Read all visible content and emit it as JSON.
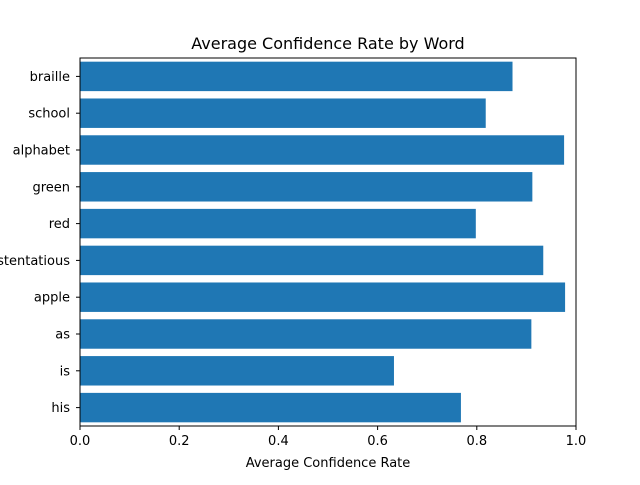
{
  "chart_data": {
    "type": "bar",
    "orientation": "horizontal",
    "title": "Average Confidence Rate by Word",
    "xlabel": "Average Confidence Rate",
    "ylabel": "",
    "categories": [
      "braille",
      "school",
      "alphabet",
      "green",
      "red",
      "ostentatious",
      "apple",
      "as",
      "is",
      "his"
    ],
    "values": [
      0.872,
      0.818,
      0.976,
      0.912,
      0.798,
      0.934,
      0.978,
      0.91,
      0.633,
      0.768
    ],
    "xlim": [
      0.0,
      1.0
    ],
    "xticks": [
      "0.0",
      "0.2",
      "0.4",
      "0.6",
      "0.8",
      "1.0"
    ],
    "grid": false,
    "legend": "none",
    "bar_color": "#1f77b4"
  }
}
